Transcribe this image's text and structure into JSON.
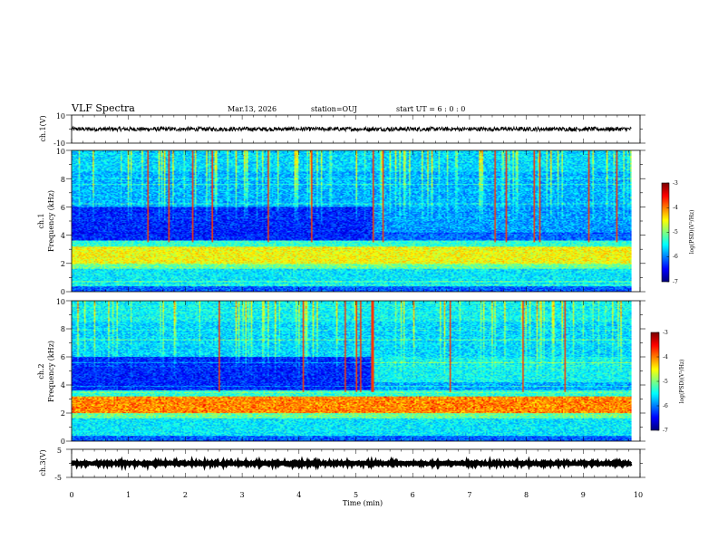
{
  "header": {
    "title": "VLF Spectra",
    "date": "Mar.13, 2026",
    "station": "station=OUJ",
    "start": "start  UT =   6 : 0  : 0"
  },
  "chart_data": {
    "type": "heatmap",
    "time_axis": {
      "label": "Time  (min)",
      "range": [
        0,
        10
      ],
      "ticks": [
        "0",
        "1",
        "2",
        "3",
        "4",
        "5",
        "6",
        "7",
        "8",
        "9",
        "10"
      ],
      "data_end_min": 9.85
    },
    "panels": [
      {
        "id": "ch1-waveform",
        "type": "line",
        "ylabel": "ch.1(V)",
        "yticks": [
          "10",
          "-10"
        ],
        "ylim": [
          -10,
          10
        ],
        "baseline": 0,
        "amplitude": 1.5
      },
      {
        "id": "ch1-spectrogram",
        "type": "heatmap",
        "ylabel_top": "ch.1",
        "ylabel": "Frequency  (kHz)",
        "yticks": [
          "0",
          "2",
          "4",
          "6",
          "8",
          "10"
        ],
        "ylim": [
          0,
          10
        ],
        "colorbar": {
          "label": "log(PSD)(V²/Hz)",
          "ticks": [
            "-3",
            "-4",
            "-5",
            "-6",
            "-7"
          ],
          "range": [
            -7,
            -3
          ]
        }
      },
      {
        "id": "ch2-spectrogram",
        "type": "heatmap",
        "ylabel_top": "ch.2",
        "ylabel": "Frequency  (kHz)",
        "yticks": [
          "0",
          "2",
          "4",
          "6",
          "8",
          "10"
        ],
        "ylim": [
          0,
          10
        ],
        "colorbar": {
          "label": "log(PSD)(V²/Hz)",
          "ticks": [
            "-3",
            "-4",
            "-5",
            "-6",
            "-7"
          ],
          "range": [
            -7,
            -3
          ]
        }
      },
      {
        "id": "ch3-waveform",
        "type": "line",
        "ylabel": "ch.3(V)",
        "yticks": [
          "5",
          "-5"
        ],
        "ylim": [
          -5,
          5
        ],
        "baseline": 0,
        "amplitude": 0.3
      }
    ]
  }
}
